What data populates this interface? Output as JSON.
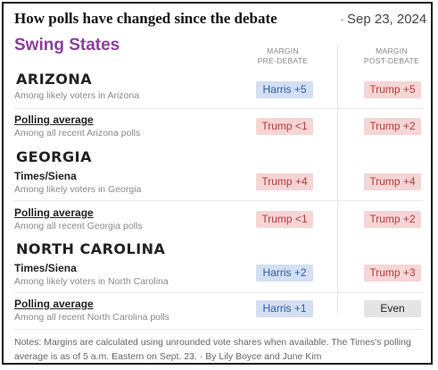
{
  "header": {
    "title": "How polls have changed since the debate",
    "date_dot": "·",
    "date": "Sep 23, 2024"
  },
  "section_title": "Swing States",
  "columns": {
    "pre": [
      "MARGIN",
      "PRE-DEBATE"
    ],
    "post": [
      "MARGIN",
      "POST-DEBATE"
    ]
  },
  "states": [
    {
      "name": "ARIZONA",
      "rows": [
        {
          "name": "",
          "sub": "Among likely voters in Arizona",
          "pre": "Harris +5",
          "pre_party": "dem",
          "post": "Trump +5",
          "post_party": "rep"
        },
        {
          "name": "Polling average",
          "sub": "Among all recent Arizona polls",
          "pre": "Trump <1",
          "pre_party": "rep",
          "post": "Trump +2",
          "post_party": "rep"
        }
      ]
    },
    {
      "name": "GEORGIA",
      "rows": [
        {
          "name": "Times/Siena",
          "sub": "Among likely voters in Georgia",
          "pre": "Trump +4",
          "pre_party": "rep",
          "post": "Trump +4",
          "post_party": "rep"
        },
        {
          "name": "Polling average",
          "sub": "Among all recent Georgia polls",
          "pre": "Trump <1",
          "pre_party": "rep",
          "post": "Trump +2",
          "post_party": "rep"
        }
      ]
    },
    {
      "name": "NORTH CAROLINA",
      "rows": [
        {
          "name": "Times/Siena",
          "sub": "Among likely voters in North Carolina",
          "pre": "Harris +2",
          "pre_party": "dem",
          "post": "Trump +3",
          "post_party": "rep"
        },
        {
          "name": "Polling average",
          "sub": "Among all recent North Carolina polls",
          "pre": "Harris +1",
          "pre_party": "dem",
          "post": "Even",
          "post_party": "even"
        }
      ]
    }
  ],
  "notes": {
    "text": "Notes: Margins are calculated using unrounded vote shares when available. The Times's polling average is as of 5 a.m. Eastern on Sept. 23.",
    "dot": "·",
    "byline": "By Lily Boyce and June Kim"
  },
  "colors": {
    "section_title": "#8b3f98",
    "dem_bg": "#d3dff2",
    "dem_text": "#2c5ba8",
    "rep_bg": "#f6d5d5",
    "rep_text": "#b53b3b",
    "even_bg": "#e4e4e4"
  }
}
